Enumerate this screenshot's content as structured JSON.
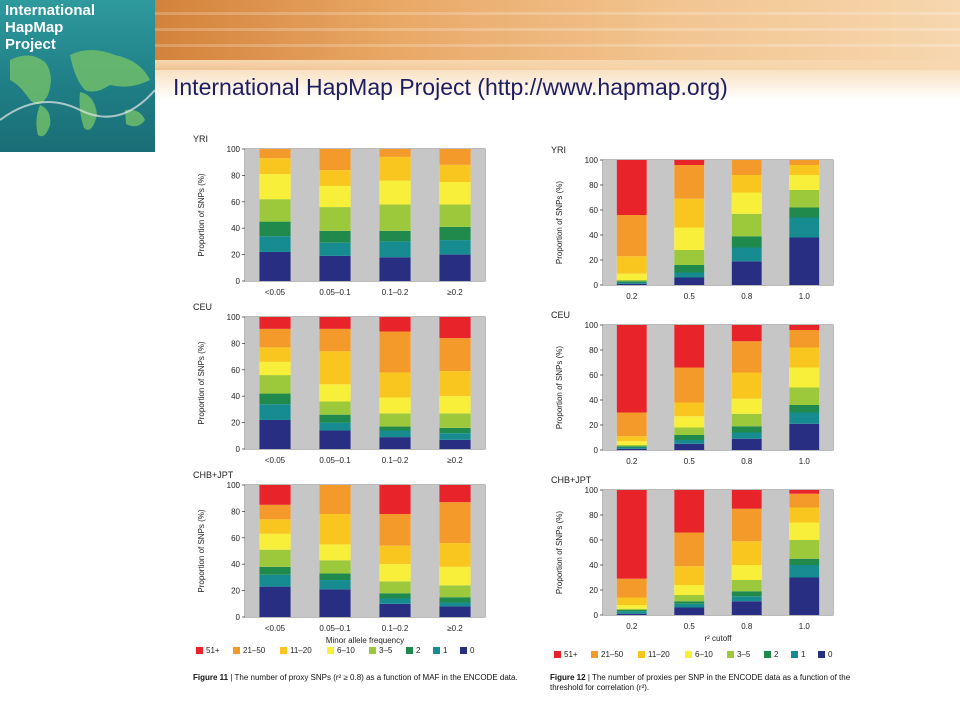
{
  "header": {
    "title": "International HapMap Project (http://www.hapmap.org)",
    "logo_text": "International\nHapMap\nProject"
  },
  "colors": {
    "51+": "#e8232a",
    "21-50": "#f49a2b",
    "11-20": "#f9c61f",
    "6-10": "#f8ef3b",
    "3-5": "#9cc83c",
    "2": "#1f8a4c",
    "1": "#168c90",
    "0": "#282f83",
    "panel_band": "#c6c6c6"
  },
  "chart_data": [
    {
      "type": "bar",
      "stacked": true,
      "figure": "Figure 11",
      "caption": "| The number of proxy SNPs (r² ≥ 0.8) as a function of MAF in the ENCODE data.",
      "ylabel": "Proportion of SNPs (%)",
      "xlabel": "Minor allele frequency",
      "ylim": [
        0,
        100
      ],
      "yticks": [
        0,
        20,
        40,
        60,
        80,
        100
      ],
      "categories": [
        "<0.05",
        "0.05–0.1",
        "0.1–0.2",
        "≥0.2"
      ],
      "legend": [
        "51+",
        "21–50",
        "11–20",
        "6–10",
        "3–5",
        "2",
        "1",
        "0"
      ],
      "panels": [
        {
          "label": "YRI",
          "series": [
            {
              "name": "0",
              "values": [
                22,
                19,
                18,
                20
              ]
            },
            {
              "name": "1",
              "values": [
                12,
                10,
                12,
                11
              ]
            },
            {
              "name": "2",
              "values": [
                11,
                9,
                8,
                10
              ]
            },
            {
              "name": "3–5",
              "values": [
                17,
                18,
                20,
                17
              ]
            },
            {
              "name": "6–10",
              "values": [
                19,
                16,
                18,
                17
              ]
            },
            {
              "name": "11–20",
              "values": [
                12,
                12,
                18,
                13
              ]
            },
            {
              "name": "21–50",
              "values": [
                7,
                16,
                6,
                12
              ]
            },
            {
              "name": "51+",
              "values": [
                0,
                0,
                0,
                0
              ]
            }
          ]
        },
        {
          "label": "CEU",
          "series": [
            {
              "name": "0",
              "values": [
                22,
                14,
                9,
                7
              ]
            },
            {
              "name": "1",
              "values": [
                12,
                6,
                5,
                5
              ]
            },
            {
              "name": "2",
              "values": [
                8,
                6,
                3,
                4
              ]
            },
            {
              "name": "3–5",
              "values": [
                14,
                10,
                10,
                11
              ]
            },
            {
              "name": "6–10",
              "values": [
                10,
                13,
                12,
                13
              ]
            },
            {
              "name": "11–20",
              "values": [
                11,
                25,
                19,
                19
              ]
            },
            {
              "name": "21–50",
              "values": [
                14,
                17,
                31,
                25
              ]
            },
            {
              "name": "51+",
              "values": [
                9,
                9,
                11,
                16
              ]
            }
          ]
        },
        {
          "label": "CHB+JPT",
          "series": [
            {
              "name": "0",
              "values": [
                23,
                21,
                10,
                8
              ]
            },
            {
              "name": "1",
              "values": [
                9,
                7,
                4,
                3
              ]
            },
            {
              "name": "2",
              "values": [
                6,
                5,
                4,
                4
              ]
            },
            {
              "name": "3–5",
              "values": [
                13,
                10,
                9,
                9
              ]
            },
            {
              "name": "6–10",
              "values": [
                12,
                12,
                13,
                14
              ]
            },
            {
              "name": "11–20",
              "values": [
                11,
                23,
                14,
                18
              ]
            },
            {
              "name": "21–50",
              "values": [
                11,
                22,
                24,
                31
              ]
            },
            {
              "name": "51+",
              "values": [
                15,
                0,
                22,
                13
              ]
            }
          ]
        }
      ]
    },
    {
      "type": "bar",
      "stacked": true,
      "figure": "Figure 12",
      "caption": "| The number of proxies per SNP in the ENCODE data as a function of the threshold for correlation (r²).",
      "ylabel": "Proportion of SNPs (%)",
      "xlabel": "r² cutoff",
      "ylim": [
        0,
        100
      ],
      "yticks": [
        0,
        20,
        40,
        60,
        80,
        100
      ],
      "categories": [
        "0.2",
        "0.5",
        "0.8",
        "1.0"
      ],
      "legend": [
        "51+",
        "21–50",
        "11–20",
        "6–10",
        "3–5",
        "2",
        "1",
        "0"
      ],
      "panels": [
        {
          "label": "YRI",
          "series": [
            {
              "name": "0",
              "values": [
                1,
                6,
                19,
                38
              ]
            },
            {
              "name": "1",
              "values": [
                1,
                4,
                11,
                16
              ]
            },
            {
              "name": "2",
              "values": [
                1,
                6,
                9,
                8
              ]
            },
            {
              "name": "3–5",
              "values": [
                1,
                12,
                18,
                14
              ]
            },
            {
              "name": "6–10",
              "values": [
                5,
                18,
                17,
                12
              ]
            },
            {
              "name": "11–20",
              "values": [
                14,
                23,
                14,
                8
              ]
            },
            {
              "name": "21–50",
              "values": [
                33,
                27,
                12,
                4
              ]
            },
            {
              "name": "51+",
              "values": [
                44,
                4,
                0,
                0
              ]
            }
          ]
        },
        {
          "label": "CEU",
          "series": [
            {
              "name": "0",
              "values": [
                1,
                5,
                9,
                21
              ]
            },
            {
              "name": "1",
              "values": [
                1,
                3,
                5,
                9
              ]
            },
            {
              "name": "2",
              "values": [
                1,
                4,
                5,
                6
              ]
            },
            {
              "name": "3–5",
              "values": [
                1,
                6,
                10,
                14
              ]
            },
            {
              "name": "6–10",
              "values": [
                3,
                9,
                12,
                16
              ]
            },
            {
              "name": "11–20",
              "values": [
                4,
                11,
                21,
                16
              ]
            },
            {
              "name": "21–50",
              "values": [
                19,
                28,
                25,
                14
              ]
            },
            {
              "name": "51+",
              "values": [
                70,
                34,
                13,
                4
              ]
            }
          ]
        },
        {
          "label": "CHB+JPT",
          "series": [
            {
              "name": "0",
              "values": [
                1,
                6,
                11,
                30
              ]
            },
            {
              "name": "1",
              "values": [
                2,
                3,
                4,
                10
              ]
            },
            {
              "name": "2",
              "values": [
                1,
                2,
                4,
                5
              ]
            },
            {
              "name": "3–5",
              "values": [
                1,
                5,
                9,
                15
              ]
            },
            {
              "name": "6–10",
              "values": [
                3,
                8,
                12,
                14
              ]
            },
            {
              "name": "11–20",
              "values": [
                6,
                15,
                19,
                12
              ]
            },
            {
              "name": "21–50",
              "values": [
                15,
                27,
                26,
                11
              ]
            },
            {
              "name": "51+",
              "values": [
                71,
                34,
                15,
                3
              ]
            }
          ]
        }
      ]
    }
  ]
}
